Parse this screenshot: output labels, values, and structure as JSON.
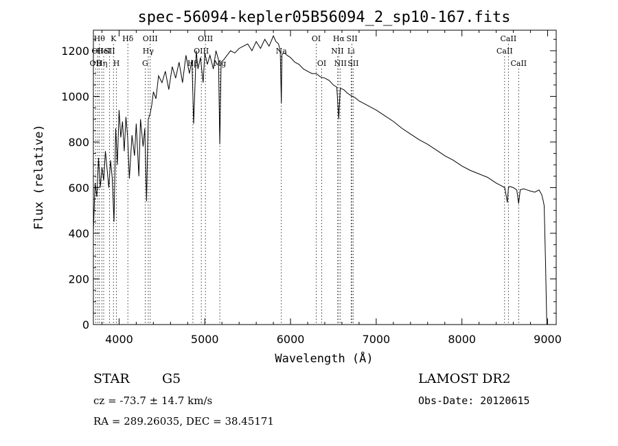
{
  "chart_data": {
    "type": "line",
    "title": "spec-56094-kepler05B56094_2_sp10-167.fits",
    "xlabel": "Wavelength (Å)",
    "ylabel": "Flux (relative)",
    "xlim": [
      3700,
      9100
    ],
    "ylim": [
      0,
      1290
    ],
    "xticks": [
      4000,
      5000,
      6000,
      7000,
      8000,
      9000
    ],
    "yticks": [
      0,
      200,
      400,
      600,
      800,
      1000,
      1200
    ],
    "grid": false,
    "series": [
      {
        "x": [
          3700,
          3720,
          3740,
          3760,
          3780,
          3800,
          3820,
          3840,
          3860,
          3880,
          3900,
          3920,
          3940,
          3960,
          3980,
          4000,
          4020,
          4040,
          4060,
          4080,
          4100,
          4120,
          4150,
          4180,
          4200,
          4230,
          4250,
          4280,
          4300,
          4320,
          4340,
          4360,
          4380,
          4400,
          4430,
          4460,
          4500,
          4540,
          4580,
          4620,
          4660,
          4700,
          4740,
          4780,
          4820,
          4850,
          4870,
          4900,
          4920,
          4950,
          4980,
          5000,
          5030,
          5060,
          5100,
          5130,
          5160,
          5175,
          5190,
          5220,
          5260,
          5300,
          5350,
          5400,
          5450,
          5500,
          5550,
          5600,
          5650,
          5700,
          5750,
          5800,
          5830,
          5860,
          5880,
          5893,
          5900,
          5930,
          5960,
          6000,
          6050,
          6100,
          6150,
          6200,
          6250,
          6300,
          6350,
          6400,
          6450,
          6500,
          6540,
          6563,
          6580,
          6620,
          6660,
          6700,
          6750,
          6800,
          6850,
          6900,
          6950,
          7000,
          7100,
          7200,
          7300,
          7400,
          7500,
          7600,
          7700,
          7800,
          7900,
          8000,
          8100,
          8200,
          8300,
          8400,
          8450,
          8500,
          8530,
          8542,
          8560,
          8600,
          8640,
          8662,
          8680,
          8720,
          8760,
          8800,
          8850,
          8900,
          8930,
          8950,
          8960,
          8975,
          8990
        ],
        "y": [
          410,
          620,
          560,
          730,
          600,
          690,
          630,
          760,
          680,
          600,
          720,
          640,
          450,
          860,
          700,
          940,
          820,
          890,
          760,
          910,
          820,
          640,
          830,
          740,
          880,
          650,
          900,
          780,
          860,
          540,
          900,
          920,
          960,
          1020,
          990,
          1090,
          1060,
          1110,
          1030,
          1130,
          1080,
          1150,
          1060,
          1180,
          1100,
          1160,
          880,
          1200,
          1120,
          1170,
          1060,
          1190,
          1140,
          1180,
          1120,
          1200,
          1160,
          790,
          1150,
          1160,
          1180,
          1200,
          1190,
          1210,
          1220,
          1230,
          1200,
          1240,
          1210,
          1250,
          1220,
          1265,
          1240,
          1230,
          1200,
          970,
          1185,
          1190,
          1180,
          1170,
          1150,
          1140,
          1120,
          1110,
          1100,
          1100,
          1085,
          1080,
          1070,
          1050,
          1040,
          900,
          1035,
          1030,
          1015,
          1005,
          995,
          980,
          970,
          960,
          950,
          940,
          915,
          890,
          860,
          835,
          810,
          790,
          765,
          740,
          720,
          695,
          675,
          660,
          645,
          620,
          610,
          600,
          535,
          600,
          605,
          600,
          590,
          530,
          590,
          595,
          590,
          585,
          580,
          590,
          570,
          540,
          520,
          280,
          0
        ]
      }
    ],
    "line_markers": [
      {
        "wave": 3727,
        "label": "OII",
        "row": 2
      },
      {
        "wave": 3750,
        "label": "OII",
        "row": 1
      },
      {
        "wave": 3770,
        "label": "Hθ",
        "row": 0
      },
      {
        "wave": 3798,
        "label": "Hη",
        "row": 2
      },
      {
        "wave": 3820,
        "label": "HeI",
        "row": 1
      },
      {
        "wave": 3889,
        "label": "SII",
        "row": 1
      },
      {
        "wave": 3934,
        "label": "K",
        "row": 0
      },
      {
        "wave": 3969,
        "label": "H",
        "row": 2
      },
      {
        "wave": 4102,
        "label": "Hδ",
        "row": 0
      },
      {
        "wave": 4304,
        "label": "G",
        "row": 2
      },
      {
        "wave": 4340,
        "label": "Hγ",
        "row": 1
      },
      {
        "wave": 4363,
        "label": "OIII",
        "row": 0
      },
      {
        "wave": 4861,
        "label": "Hβ",
        "row": 2
      },
      {
        "wave": 4959,
        "label": "OIII",
        "row": 1
      },
      {
        "wave": 5007,
        "label": "OIII",
        "row": 0
      },
      {
        "wave": 5175,
        "label": "Mg",
        "row": 2
      },
      {
        "wave": 5893,
        "label": "Na",
        "row": 1
      },
      {
        "wave": 6300,
        "label": "OI",
        "row": 0
      },
      {
        "wave": 6364,
        "label": "OI",
        "row": 2
      },
      {
        "wave": 6548,
        "label": "NII",
        "row": 1
      },
      {
        "wave": 6563,
        "label": "Hα",
        "row": 0
      },
      {
        "wave": 6583,
        "label": "NII",
        "row": 2
      },
      {
        "wave": 6707,
        "label": "Li",
        "row": 1
      },
      {
        "wave": 6717,
        "label": "SII",
        "row": 0
      },
      {
        "wave": 6731,
        "label": "SII",
        "row": 2
      },
      {
        "wave": 8498,
        "label": "CaII",
        "row": 1
      },
      {
        "wave": 8542,
        "label": "CaII",
        "row": 0
      },
      {
        "wave": 8662,
        "label": "CaII",
        "row": 2
      }
    ]
  },
  "info": {
    "object_class": "STAR",
    "subclass": "G5",
    "survey": "LAMOST DR2",
    "redshift": "cz = -73.7 ± 14.7 km/s",
    "obs_date": "Obs-Date: 20120615",
    "coordinates": "RA = 289.26035, DEC =  38.45171"
  }
}
